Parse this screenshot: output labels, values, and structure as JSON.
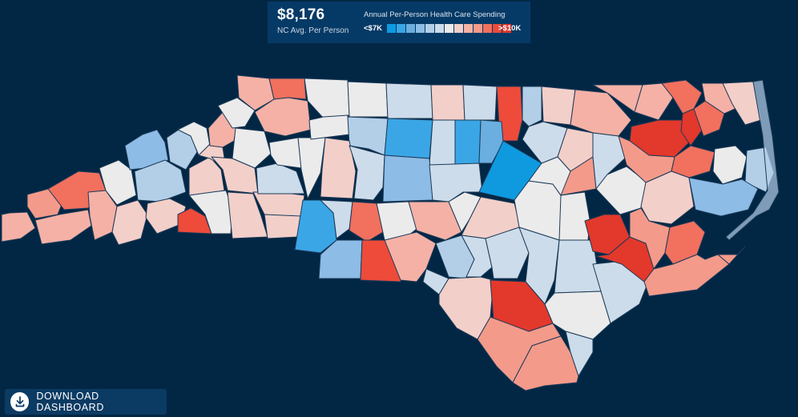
{
  "header": {
    "avg_value": "$8,176",
    "avg_label": "NC Avg. Per Person",
    "scale_title": "Annual Per-Person Health Care Spending",
    "scale_min": "<$7K",
    "scale_max": ">$10K",
    "swatches": [
      "#0f9ae0",
      "#3aa6e6",
      "#6baee0",
      "#8dbce6",
      "#b3cfe8",
      "#cddcea",
      "#ebebeb",
      "#f3cfc9",
      "#f5b1a6",
      "#f49a8a",
      "#f1705e",
      "#ee4b3a",
      "#e3382c"
    ]
  },
  "download": {
    "label": "DOWNLOAD DASHBOARD",
    "icon": "download-icon"
  },
  "colors": {
    "background": "#022745",
    "county_border": "#1b3a58",
    "water": "#022745"
  }
}
